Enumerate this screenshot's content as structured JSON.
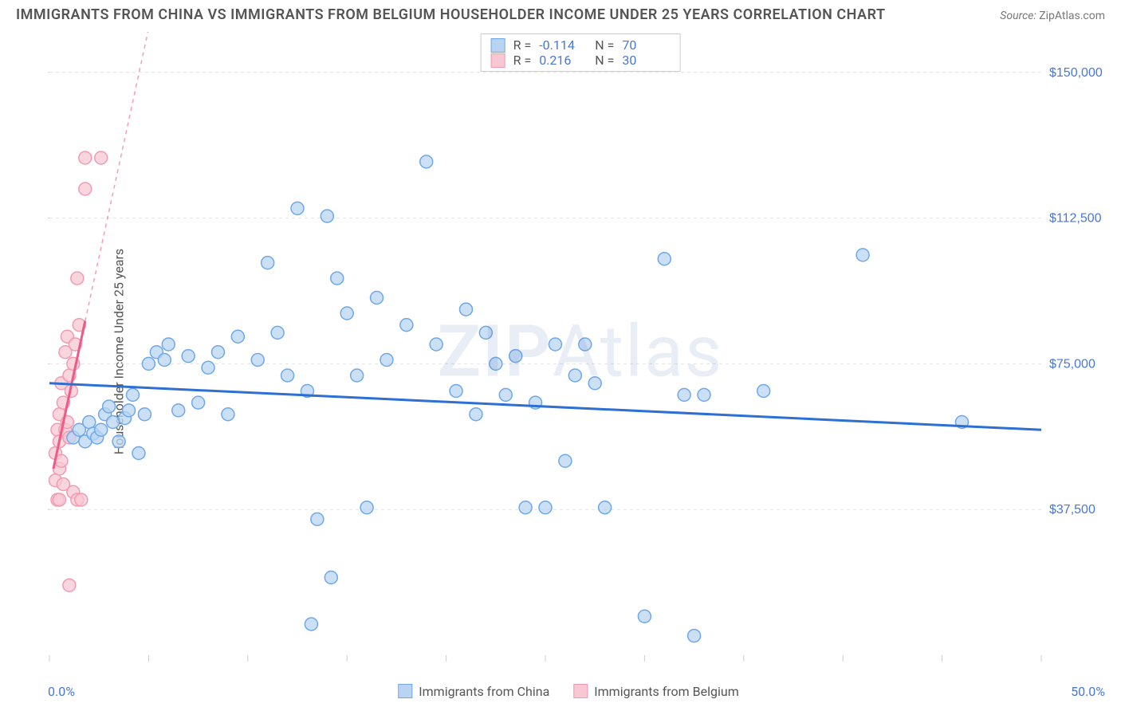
{
  "title": "IMMIGRANTS FROM CHINA VS IMMIGRANTS FROM BELGIUM HOUSEHOLDER INCOME UNDER 25 YEARS CORRELATION CHART",
  "source_label": "Source:",
  "source_value": "ZipAtlas.com",
  "watermark_a": "ZIP",
  "watermark_b": "Atlas",
  "ylabel": "Householder Income Under 25 years",
  "x_axis": {
    "min_label": "0.0%",
    "max_label": "50.0%",
    "min": 0.0,
    "max": 50.0,
    "ticks": [
      0,
      5,
      10,
      15,
      20,
      25,
      30,
      35,
      40,
      45,
      50
    ]
  },
  "y_axis": {
    "min": 0,
    "max": 160000,
    "grid": [
      37500,
      75000,
      112500,
      150000
    ],
    "grid_labels": [
      "$37,500",
      "$75,000",
      "$112,500",
      "$150,000"
    ]
  },
  "colors": {
    "blue_fill": "#b9d4f2",
    "blue_stroke": "#6fa8e8",
    "blue_line": "#2d6fd2",
    "pink_fill": "#f7c7d3",
    "pink_stroke": "#f19bb2",
    "pink_line": "#ef5b87",
    "grid": "#e2e2e2",
    "axis": "#cccccc",
    "tick_label": "#4a77d4",
    "background": "#ffffff"
  },
  "marker_radius": 8,
  "series": [
    {
      "name": "Immigrants from China",
      "color_key": "blue",
      "R_label": "R =",
      "R_value": "-0.114",
      "N_label": "N =",
      "N_value": "70",
      "trend": {
        "x1": 0,
        "y1": 70000,
        "x2": 50,
        "y2": 58000
      },
      "points": [
        [
          1.2,
          56000
        ],
        [
          1.5,
          58000
        ],
        [
          1.8,
          55000
        ],
        [
          2.0,
          60000
        ],
        [
          2.2,
          57000
        ],
        [
          2.4,
          56000
        ],
        [
          2.6,
          58000
        ],
        [
          2.8,
          62000
        ],
        [
          3.0,
          64000
        ],
        [
          3.2,
          60000
        ],
        [
          3.5,
          55000
        ],
        [
          3.8,
          61000
        ],
        [
          4.0,
          63000
        ],
        [
          4.2,
          67000
        ],
        [
          4.5,
          52000
        ],
        [
          4.8,
          62000
        ],
        [
          5.0,
          75000
        ],
        [
          5.4,
          78000
        ],
        [
          5.8,
          76000
        ],
        [
          6.0,
          80000
        ],
        [
          6.5,
          63000
        ],
        [
          7.0,
          77000
        ],
        [
          7.5,
          65000
        ],
        [
          8.0,
          74000
        ],
        [
          8.5,
          78000
        ],
        [
          9.0,
          62000
        ],
        [
          9.5,
          82000
        ],
        [
          10.5,
          76000
        ],
        [
          11.0,
          101000
        ],
        [
          11.5,
          83000
        ],
        [
          12.0,
          72000
        ],
        [
          12.5,
          115000
        ],
        [
          13.0,
          68000
        ],
        [
          13.2,
          8000
        ],
        [
          13.5,
          35000
        ],
        [
          14.0,
          113000
        ],
        [
          14.2,
          20000
        ],
        [
          14.5,
          97000
        ],
        [
          15.0,
          88000
        ],
        [
          15.5,
          72000
        ],
        [
          16.0,
          38000
        ],
        [
          16.5,
          92000
        ],
        [
          17.0,
          76000
        ],
        [
          18.0,
          85000
        ],
        [
          19.0,
          127000
        ],
        [
          19.5,
          80000
        ],
        [
          20.5,
          68000
        ],
        [
          21.0,
          89000
        ],
        [
          21.5,
          62000
        ],
        [
          22.0,
          83000
        ],
        [
          22.5,
          75000
        ],
        [
          23.0,
          67000
        ],
        [
          23.5,
          77000
        ],
        [
          24.0,
          38000
        ],
        [
          24.5,
          65000
        ],
        [
          25.0,
          38000
        ],
        [
          25.5,
          80000
        ],
        [
          26.0,
          50000
        ],
        [
          26.5,
          72000
        ],
        [
          27.0,
          80000
        ],
        [
          27.5,
          70000
        ],
        [
          28.0,
          38000
        ],
        [
          30.0,
          10000
        ],
        [
          31.0,
          102000
        ],
        [
          32.0,
          67000
        ],
        [
          32.5,
          5000
        ],
        [
          33.0,
          67000
        ],
        [
          36.0,
          68000
        ],
        [
          41.0,
          103000
        ],
        [
          46.0,
          60000
        ]
      ]
    },
    {
      "name": "Immigrants from Belgium",
      "color_key": "pink",
      "R_label": "R =",
      "R_value": "0.216",
      "N_label": "N =",
      "N_value": "30",
      "trend": {
        "x1": 0.2,
        "y1": 48000,
        "x2": 1.8,
        "y2": 86000
      },
      "trend_ext": {
        "x1": 1.8,
        "y1": 86000,
        "x2": 7.5,
        "y2": 220000
      },
      "points": [
        [
          0.3,
          45000
        ],
        [
          0.3,
          52000
        ],
        [
          0.4,
          40000
        ],
        [
          0.4,
          58000
        ],
        [
          0.5,
          48000
        ],
        [
          0.5,
          62000
        ],
        [
          0.5,
          55000
        ],
        [
          0.6,
          50000
        ],
        [
          0.6,
          70000
        ],
        [
          0.7,
          44000
        ],
        [
          0.7,
          65000
        ],
        [
          0.8,
          58000
        ],
        [
          0.8,
          78000
        ],
        [
          0.9,
          60000
        ],
        [
          0.9,
          82000
        ],
        [
          1.0,
          56000
        ],
        [
          1.0,
          72000
        ],
        [
          1.1,
          68000
        ],
        [
          1.2,
          75000
        ],
        [
          1.2,
          42000
        ],
        [
          1.3,
          80000
        ],
        [
          1.4,
          97000
        ],
        [
          1.4,
          40000
        ],
        [
          1.5,
          85000
        ],
        [
          1.6,
          40000
        ],
        [
          1.8,
          120000
        ],
        [
          1.8,
          128000
        ],
        [
          2.6,
          128000
        ],
        [
          1.0,
          18000
        ],
        [
          0.5,
          40000
        ]
      ]
    }
  ],
  "legend_bottom": [
    {
      "label": "Immigrants from China",
      "color_key": "blue"
    },
    {
      "label": "Immigrants from Belgium",
      "color_key": "pink"
    }
  ]
}
